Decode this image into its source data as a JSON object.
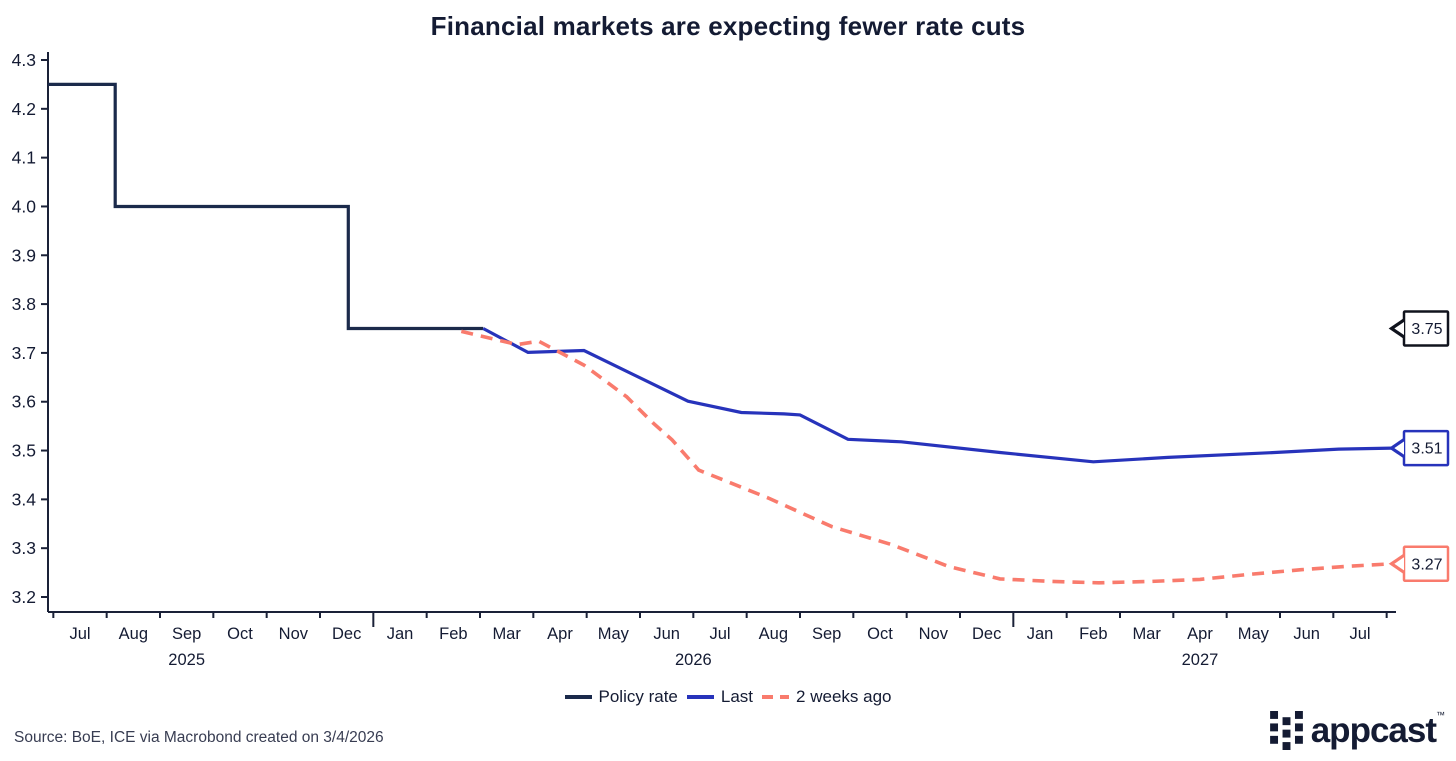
{
  "title": "Financial markets are expecting fewer rate cuts",
  "source_note": "Source: BoE, ICE via Macrobond created on 3/4/2026",
  "brand": {
    "name": "appcast",
    "trademark": "™"
  },
  "colors": {
    "policy_rate": "#1b2a4b",
    "last": "#2733bb",
    "two_weeks_ago": "#f97b6d",
    "text": "#141b33",
    "axis": "#1a2138",
    "source_text": "#383d52",
    "callout_dark": "#10131d",
    "background": "#ffffff"
  },
  "legend": [
    {
      "label": "Policy rate",
      "color": "#1b2a4b",
      "dashed": false
    },
    {
      "label": "Last",
      "color": "#2733bb",
      "dashed": false
    },
    {
      "label": "2 weeks ago",
      "color": "#f97b6d",
      "dashed": true
    }
  ],
  "callouts": [
    {
      "label": "3.75",
      "value": 3.75,
      "color": "#10131d"
    },
    {
      "label": "3.51",
      "value": 3.505,
      "color": "#2733bb"
    },
    {
      "label": "3.27",
      "value": 3.268,
      "color": "#f97b6d"
    }
  ],
  "chart_data": {
    "type": "line",
    "title": "Financial markets are expecting fewer rate cuts",
    "x_unit": "months since Jul 2025 (0 = Jul 2025, fractional = intra-month)",
    "x_axis": {
      "months": [
        "Jul",
        "Aug",
        "Sep",
        "Oct",
        "Nov",
        "Dec",
        "Jan",
        "Feb",
        "Mar",
        "Apr",
        "May",
        "Jun",
        "Jul",
        "Aug",
        "Sep",
        "Oct",
        "Nov",
        "Dec",
        "Jan",
        "Feb",
        "Mar",
        "Apr",
        "May",
        "Jun",
        "Jul"
      ],
      "years": [
        {
          "label": "2025",
          "at_month_index": 2
        },
        {
          "label": "2026",
          "at_month_index": 11.5
        },
        {
          "label": "2027",
          "at_month_index": 21
        }
      ]
    },
    "y_ticks": [
      "4.3",
      "4.2",
      "4.1",
      "4.0",
      "3.9",
      "3.8",
      "3.7",
      "3.6",
      "3.5",
      "3.4",
      "3.3",
      "3.2"
    ],
    "ylim": [
      3.2,
      4.3
    ],
    "grid": false,
    "legend_position": "bottom",
    "series": [
      {
        "name": "Policy rate",
        "color_key": "policy_rate",
        "dashed": false,
        "points": [
          [
            -0.6,
            4.25
          ],
          [
            0.66,
            4.25
          ],
          [
            0.66,
            4.0
          ],
          [
            5.03,
            4.0
          ],
          [
            5.03,
            3.75
          ],
          [
            7.56,
            3.75
          ]
        ]
      },
      {
        "name": "Last",
        "color_key": "last",
        "dashed": false,
        "points": [
          [
            7.56,
            3.75
          ],
          [
            8.4,
            3.701
          ],
          [
            9.45,
            3.705
          ],
          [
            11.4,
            3.601
          ],
          [
            12.4,
            3.578
          ],
          [
            13.2,
            3.575
          ],
          [
            13.5,
            3.573
          ],
          [
            14.4,
            3.523
          ],
          [
            15.4,
            3.518
          ],
          [
            17.25,
            3.496
          ],
          [
            19.0,
            3.477
          ],
          [
            20.4,
            3.486
          ],
          [
            22.4,
            3.496
          ],
          [
            23.6,
            3.503
          ],
          [
            24.6,
            3.505
          ]
        ]
      },
      {
        "name": "2 weeks ago",
        "color_key": "two_weeks_ago",
        "dashed": true,
        "points": [
          [
            7.15,
            3.744
          ],
          [
            8.2,
            3.717
          ],
          [
            8.6,
            3.724
          ],
          [
            9.45,
            3.675
          ],
          [
            10.25,
            3.61
          ],
          [
            10.75,
            3.556
          ],
          [
            11.1,
            3.522
          ],
          [
            11.6,
            3.46
          ],
          [
            12.9,
            3.403
          ],
          [
            14.1,
            3.344
          ],
          [
            15.2,
            3.308
          ],
          [
            16.3,
            3.262
          ],
          [
            17.25,
            3.237
          ],
          [
            18.2,
            3.232
          ],
          [
            19.1,
            3.229
          ],
          [
            20.1,
            3.232
          ],
          [
            21.0,
            3.236
          ],
          [
            21.9,
            3.246
          ],
          [
            22.9,
            3.256
          ],
          [
            23.8,
            3.263
          ],
          [
            24.6,
            3.268
          ]
        ]
      }
    ]
  }
}
